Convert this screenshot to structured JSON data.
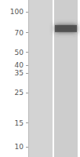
{
  "chart_data": {
    "type": "blot",
    "categories": [
      null,
      null
    ],
    "values": [
      null,
      75
    ],
    "color": "#4a4a4a",
    "ylim": [
      8.4,
      122
    ],
    "yticks": [
      10,
      15,
      25,
      35,
      40,
      50,
      70,
      100
    ],
    "log": "y",
    "tick_labels": "y",
    "grid": false
  }
}
